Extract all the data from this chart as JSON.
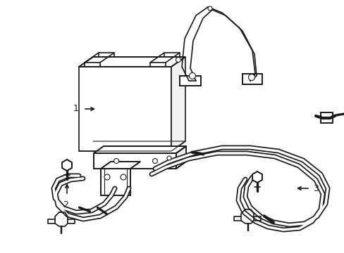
{
  "bg_color": "#ffffff",
  "lc": "#1a1a1a",
  "lw": 1.2,
  "tlw": 0.8,
  "fig_width": 4.89,
  "fig_height": 3.6,
  "dpi": 100
}
